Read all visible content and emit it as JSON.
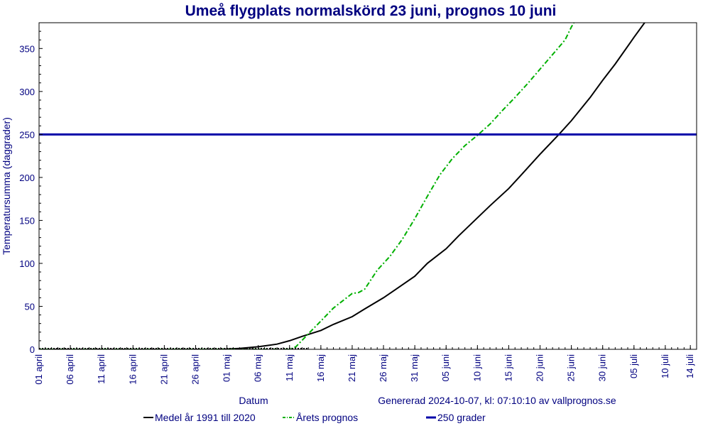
{
  "chart_data": {
    "type": "line",
    "title": "Umeå flygplats normalskörd 23 juni, prognos 10 juni",
    "xlabel": "Datum",
    "ylabel": "Temperatursumma (daggrader)",
    "generated_text": "Genererad 2024-10-07, kl: 07:10:10 av vallprognos.se",
    "x_ticks": [
      "01 april",
      "06 april",
      "11 april",
      "16 april",
      "21 april",
      "26 april",
      "01 maj",
      "06 maj",
      "11 maj",
      "16 maj",
      "21 maj",
      "26 maj",
      "31 maj",
      "05 juni",
      "10 juni",
      "15 juni",
      "20 juni",
      "25 juni",
      "30 juni",
      "05 juli",
      "10 juli",
      "14 juli"
    ],
    "y_ticks": [
      0,
      50,
      100,
      150,
      200,
      250,
      300,
      350
    ],
    "xlim": [
      "2024-04-01",
      "2024-07-15"
    ],
    "ylim": [
      0,
      380
    ],
    "grid": false,
    "legend_position": "bottom",
    "series": [
      {
        "name": "Medel år 1991 till 2020",
        "color": "#000000",
        "style": "solid",
        "x": [
          "2024-04-01",
          "2024-04-21",
          "2024-04-30",
          "2024-05-03",
          "2024-05-06",
          "2024-05-09",
          "2024-05-11",
          "2024-05-13",
          "2024-05-16",
          "2024-05-18",
          "2024-05-21",
          "2024-05-23",
          "2024-05-26",
          "2024-05-28",
          "2024-05-31",
          "2024-06-02",
          "2024-06-05",
          "2024-06-07",
          "2024-06-10",
          "2024-06-12",
          "2024-06-15",
          "2024-06-17",
          "2024-06-20",
          "2024-06-23",
          "2024-06-25",
          "2024-06-28",
          "2024-06-30",
          "2024-07-02",
          "2024-07-05",
          "2024-07-07",
          "2024-07-08"
        ],
        "values": [
          0,
          0,
          0,
          1,
          3,
          6,
          10,
          15,
          22,
          29,
          38,
          47,
          60,
          70,
          85,
          100,
          117,
          132,
          153,
          167,
          187,
          203,
          227,
          250,
          266,
          293,
          313,
          332,
          363,
          383,
          395
        ]
      },
      {
        "name": "Årets prognos",
        "color": "#00b000",
        "style": "dashdot",
        "x": [
          "2024-04-01",
          "2024-05-09",
          "2024-05-11",
          "2024-05-12",
          "2024-05-14",
          "2024-05-16",
          "2024-05-18",
          "2024-05-21",
          "2024-05-22",
          "2024-05-23",
          "2024-05-25",
          "2024-05-27",
          "2024-05-29",
          "2024-05-31",
          "2024-06-02",
          "2024-06-04",
          "2024-06-06",
          "2024-06-08",
          "2024-06-10",
          "2024-06-12",
          "2024-06-14",
          "2024-06-16",
          "2024-06-18",
          "2024-06-20",
          "2024-06-22",
          "2024-06-24",
          "2024-06-25",
          "2024-06-27",
          "2024-06-28"
        ],
        "values": [
          0,
          0,
          0,
          3,
          18,
          33,
          48,
          65,
          66,
          70,
          92,
          108,
          128,
          152,
          178,
          203,
          222,
          237,
          249,
          262,
          278,
          293,
          309,
          326,
          343,
          360,
          375,
          400,
          420
        ]
      },
      {
        "name": "250 grader",
        "color": "#0000a8",
        "style": "solid",
        "x": [
          "2024-04-01",
          "2024-07-15"
        ],
        "values": [
          250,
          250
        ]
      }
    ]
  }
}
